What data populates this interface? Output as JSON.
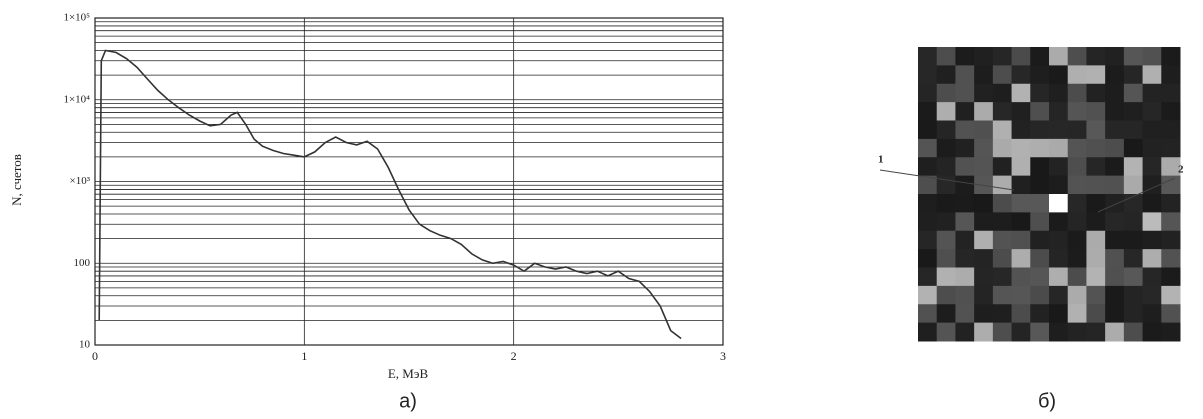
{
  "chart_data": {
    "type": "line",
    "log_y": true,
    "grid": true,
    "color": "#333333",
    "x_label": "E, МэВ",
    "y_label": "N, счетов",
    "panel_label": "а)",
    "xlim": [
      0,
      3
    ],
    "xticks": [
      0,
      1,
      2,
      3
    ],
    "ylim": [
      10,
      100000
    ],
    "yticks": [
      {
        "value": 100000,
        "label": "1×10⁵"
      },
      {
        "value": 10000,
        "label": "1×10⁴"
      },
      {
        "value": 1000,
        "label": "×10³"
      },
      100,
      10
    ],
    "minor_yticks": [
      20,
      30,
      40,
      50,
      60,
      70,
      80,
      90,
      200,
      300,
      400,
      500,
      600,
      700,
      800,
      900,
      2000,
      3000,
      4000,
      5000,
      6000,
      7000,
      8000,
      9000,
      20000,
      30000,
      40000,
      50000,
      60000,
      70000,
      80000,
      90000
    ],
    "x": [
      0.02,
      0.03,
      0.05,
      0.1,
      0.15,
      0.2,
      0.25,
      0.3,
      0.35,
      0.4,
      0.45,
      0.5,
      0.55,
      0.6,
      0.65,
      0.68,
      0.72,
      0.76,
      0.8,
      0.85,
      0.9,
      0.95,
      1.0,
      1.05,
      1.1,
      1.15,
      1.2,
      1.25,
      1.3,
      1.35,
      1.4,
      1.45,
      1.5,
      1.55,
      1.6,
      1.65,
      1.7,
      1.75,
      1.8,
      1.85,
      1.9,
      1.95,
      2.0,
      2.05,
      2.1,
      2.15,
      2.2,
      2.25,
      2.3,
      2.35,
      2.4,
      2.45,
      2.5,
      2.55,
      2.6,
      2.65,
      2.7,
      2.75,
      2.8
    ],
    "values": [
      20,
      30000,
      40000,
      38000,
      32000,
      25000,
      18000,
      13000,
      10000,
      8000,
      6500,
      5500,
      4800,
      5000,
      6500,
      7000,
      5000,
      3300,
      2700,
      2400,
      2200,
      2100,
      2000,
      2300,
      3000,
      3500,
      3000,
      2800,
      3100,
      2500,
      1500,
      800,
      450,
      300,
      250,
      220,
      200,
      170,
      130,
      110,
      100,
      105,
      95,
      80,
      100,
      90,
      85,
      90,
      80,
      75,
      80,
      70,
      80,
      65,
      60,
      45,
      30,
      15,
      12
    ]
  },
  "image": {
    "markers": [
      "1",
      "2"
    ],
    "panel_label": "б)"
  }
}
